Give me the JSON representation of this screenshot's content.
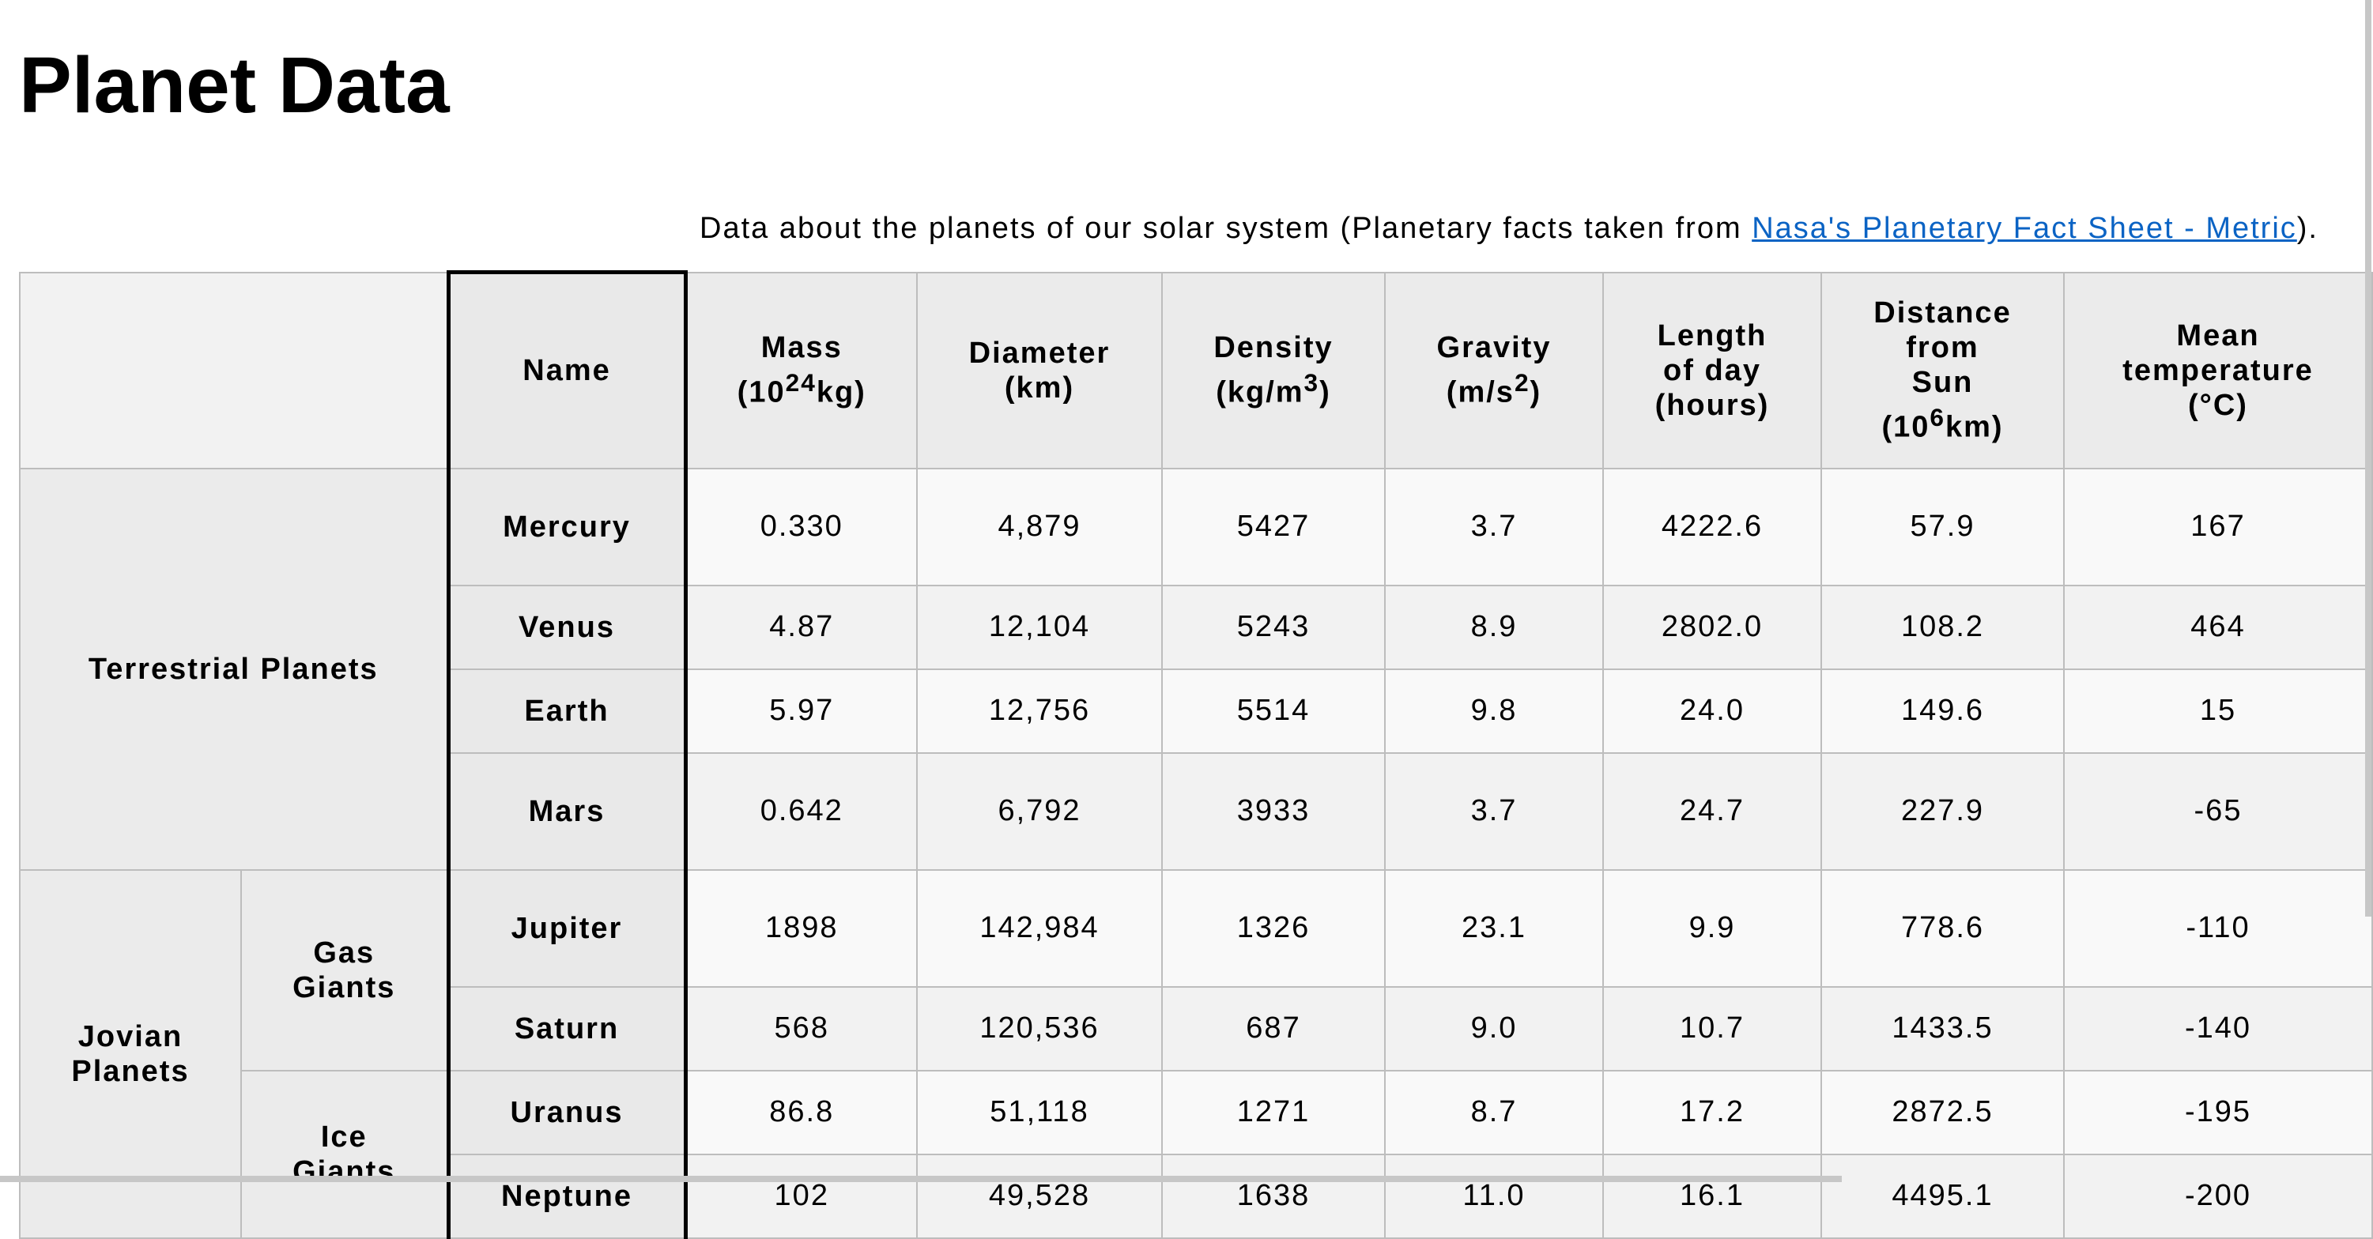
{
  "page": {
    "title": "Planet Data",
    "caption_prefix": "Data about the planets of our solar system (Planetary facts taken from ",
    "caption_link": "Nasa's Planetary Fact Sheet - Metric",
    "caption_suffix": ")."
  },
  "table": {
    "headers": {
      "name": "Name",
      "mass": "Mass",
      "mass_unit_pre": "(10",
      "mass_unit_sup": "24",
      "mass_unit_post": "kg)",
      "diameter": "Diameter",
      "diameter_unit": "(km)",
      "density": "Density",
      "density_unit_pre": "(kg/m",
      "density_unit_sup": "3",
      "density_unit_post": ")",
      "gravity": "Gravity",
      "gravity_unit_pre": "(m/s",
      "gravity_unit_sup": "2",
      "gravity_unit_post": ")",
      "day_1": "Length",
      "day_2": "of day",
      "day_3": "(hours)",
      "dist_1": "Distance",
      "dist_2": "from",
      "dist_3": "Sun",
      "dist_unit_pre": "(10",
      "dist_unit_sup": "6",
      "dist_unit_post": "km)",
      "temp_1": "Mean",
      "temp_2": "temperature",
      "temp_3": "(°C)"
    },
    "groups": {
      "terrestrial": "Terrestrial Planets",
      "jovian_1": "Jovian",
      "jovian_2": "Planets",
      "gas_1": "Gas",
      "gas_2": "Giants",
      "ice_1": "Ice",
      "ice_2": "Giants"
    },
    "rows": [
      {
        "name": "Mercury",
        "mass": "0.330",
        "diameter": "4,879",
        "density": "5427",
        "gravity": "3.7",
        "day": "4222.6",
        "distance": "57.9",
        "temp": "167"
      },
      {
        "name": "Venus",
        "mass": "4.87",
        "diameter": "12,104",
        "density": "5243",
        "gravity": "8.9",
        "day": "2802.0",
        "distance": "108.2",
        "temp": "464"
      },
      {
        "name": "Earth",
        "mass": "5.97",
        "diameter": "12,756",
        "density": "5514",
        "gravity": "9.8",
        "day": "24.0",
        "distance": "149.6",
        "temp": "15"
      },
      {
        "name": "Mars",
        "mass": "0.642",
        "diameter": "6,792",
        "density": "3933",
        "gravity": "3.7",
        "day": "24.7",
        "distance": "227.9",
        "temp": "-65"
      },
      {
        "name": "Jupiter",
        "mass": "1898",
        "diameter": "142,984",
        "density": "1326",
        "gravity": "23.1",
        "day": "9.9",
        "distance": "778.6",
        "temp": "-110"
      },
      {
        "name": "Saturn",
        "mass": "568",
        "diameter": "120,536",
        "density": "687",
        "gravity": "9.0",
        "day": "10.7",
        "distance": "1433.5",
        "temp": "-140"
      },
      {
        "name": "Uranus",
        "mass": "86.8",
        "diameter": "51,118",
        "density": "1271",
        "gravity": "8.7",
        "day": "17.2",
        "distance": "2872.5",
        "temp": "-195"
      },
      {
        "name": "Neptune",
        "mass": "102",
        "diameter": "49,528",
        "density": "1638",
        "gravity": "11.0",
        "day": "16.1",
        "distance": "4495.1",
        "temp": "-200"
      }
    ]
  }
}
